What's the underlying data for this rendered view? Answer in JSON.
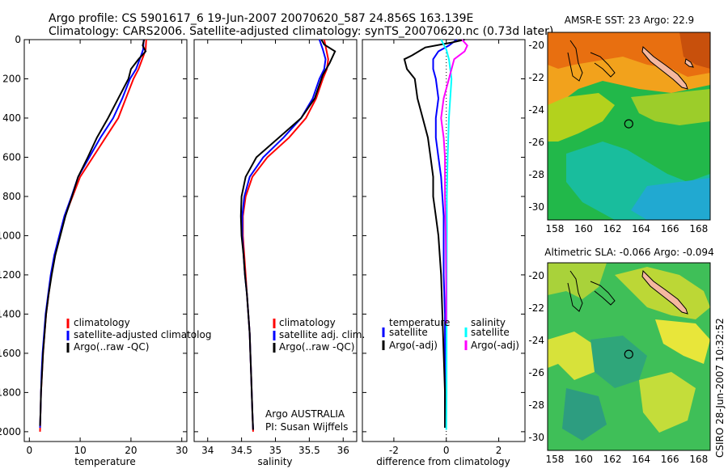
{
  "header": {
    "line1": "Argo profile: CS 5901617_6 19-Jun-2007 20070620_587 24.856S 163.139E",
    "line2": "Climatology: CARS2006. Satellite-adjusted climatology: synTS_20070620.nc (0.73d later)"
  },
  "side_note": "CSIRO 28-Jun-2007 10:32:52",
  "credits": {
    "line1": "Argo AUSTRALIA",
    "line2": "PI: Susan Wijffels"
  },
  "colors": {
    "climatology": "#ff0000",
    "satellite": "#0000ff",
    "argo": "#000000",
    "sat_diff": "#00ffff",
    "argo_adj_diff": "#ff00ff"
  },
  "chart_data": [
    {
      "type": "line",
      "xlabel": "temperature",
      "ylabel": "",
      "xlim": [
        -1,
        31
      ],
      "ylim": [
        2050,
        0
      ],
      "y_reversed": true,
      "xticks": [
        0,
        10,
        20,
        30
      ],
      "yticks": [
        0,
        200,
        400,
        600,
        800,
        1000,
        1200,
        1400,
        1600,
        1800,
        2000
      ],
      "legend": [
        "climatology",
        "satellite-adjusted climatolog",
        "Argo(..raw -QC)"
      ],
      "legend_placement": "lower-right",
      "series": [
        {
          "name": "climatology",
          "color": "#ff0000",
          "points": [
            [
              23.0,
              0
            ],
            [
              22.9,
              50
            ],
            [
              22.5,
              80
            ],
            [
              21.5,
              150
            ],
            [
              20.5,
              200
            ],
            [
              19.0,
              300
            ],
            [
              17.5,
              400
            ],
            [
              15.0,
              500
            ],
            [
              12.5,
              600
            ],
            [
              10.0,
              700
            ],
            [
              8.5,
              800
            ],
            [
              7.0,
              900
            ],
            [
              6.0,
              1000
            ],
            [
              5.0,
              1100
            ],
            [
              4.3,
              1200
            ],
            [
              3.8,
              1300
            ],
            [
              3.3,
              1400
            ],
            [
              3.0,
              1500
            ],
            [
              2.7,
              1600
            ],
            [
              2.5,
              1700
            ],
            [
              2.3,
              1800
            ],
            [
              2.2,
              1900
            ],
            [
              2.1,
              2000
            ]
          ]
        },
        {
          "name": "satellite-adjusted climatolog",
          "color": "#0000ff",
          "points": [
            [
              22.5,
              0
            ],
            [
              22.4,
              50
            ],
            [
              22.0,
              80
            ],
            [
              21.0,
              150
            ],
            [
              19.8,
              200
            ],
            [
              18.3,
              300
            ],
            [
              16.5,
              400
            ],
            [
              14.0,
              500
            ],
            [
              11.8,
              600
            ],
            [
              9.6,
              700
            ],
            [
              8.3,
              800
            ],
            [
              6.9,
              900
            ],
            [
              5.9,
              1000
            ],
            [
              4.9,
              1100
            ],
            [
              4.2,
              1200
            ],
            [
              3.7,
              1300
            ],
            [
              3.2,
              1400
            ],
            [
              2.9,
              1500
            ],
            [
              2.6,
              1600
            ],
            [
              2.4,
              1700
            ],
            [
              2.3,
              1800
            ],
            [
              2.2,
              1900
            ],
            [
              2.1,
              1980
            ]
          ]
        },
        {
          "name": "Argo(..raw -QC)",
          "color": "#000000",
          "points": [
            [
              22.6,
              0
            ],
            [
              22.3,
              30
            ],
            [
              22.9,
              60
            ],
            [
              21.5,
              100
            ],
            [
              20.0,
              150
            ],
            [
              19.5,
              200
            ],
            [
              17.5,
              300
            ],
            [
              15.5,
              400
            ],
            [
              13.3,
              500
            ],
            [
              11.5,
              600
            ],
            [
              9.6,
              700
            ],
            [
              8.4,
              800
            ],
            [
              7.1,
              900
            ],
            [
              6.1,
              1000
            ],
            [
              5.1,
              1100
            ],
            [
              4.4,
              1200
            ],
            [
              3.8,
              1300
            ],
            [
              3.3,
              1400
            ],
            [
              3.0,
              1500
            ],
            [
              2.7,
              1600
            ],
            [
              2.5,
              1700
            ],
            [
              2.3,
              1800
            ],
            [
              2.2,
              1900
            ],
            [
              2.1,
              1970
            ]
          ]
        }
      ]
    },
    {
      "type": "line",
      "xlabel": "salinity",
      "ylabel": "",
      "xlim": [
        33.8,
        36.2
      ],
      "ylim": [
        2050,
        0
      ],
      "y_reversed": true,
      "xticks": [
        34,
        34.5,
        35,
        35.5,
        36
      ],
      "legend": [
        "climatology",
        "satellite adj. clim.",
        "Argo(..raw -QC)"
      ],
      "legend_placement": "lower-right",
      "series": [
        {
          "name": "climatology",
          "color": "#ff0000",
          "points": [
            [
              35.72,
              0
            ],
            [
              35.75,
              50
            ],
            [
              35.78,
              100
            ],
            [
              35.76,
              150
            ],
            [
              35.7,
              200
            ],
            [
              35.6,
              300
            ],
            [
              35.45,
              400
            ],
            [
              35.2,
              500
            ],
            [
              34.88,
              600
            ],
            [
              34.66,
              700
            ],
            [
              34.56,
              800
            ],
            [
              34.52,
              900
            ],
            [
              34.52,
              1000
            ],
            [
              34.54,
              1100
            ],
            [
              34.56,
              1200
            ],
            [
              34.58,
              1300
            ],
            [
              34.6,
              1400
            ],
            [
              34.62,
              1500
            ],
            [
              34.63,
              1600
            ],
            [
              34.64,
              1700
            ],
            [
              34.65,
              1800
            ],
            [
              34.66,
              1900
            ],
            [
              34.67,
              2000
            ]
          ]
        },
        {
          "name": "satellite adj. clim.",
          "color": "#0000ff",
          "points": [
            [
              35.65,
              0
            ],
            [
              35.7,
              50
            ],
            [
              35.74,
              100
            ],
            [
              35.72,
              150
            ],
            [
              35.65,
              200
            ],
            [
              35.55,
              300
            ],
            [
              35.38,
              400
            ],
            [
              35.12,
              500
            ],
            [
              34.82,
              600
            ],
            [
              34.62,
              700
            ],
            [
              34.54,
              800
            ],
            [
              34.51,
              900
            ],
            [
              34.51,
              1000
            ],
            [
              34.53,
              1100
            ],
            [
              34.55,
              1200
            ],
            [
              34.58,
              1300
            ],
            [
              34.6,
              1400
            ],
            [
              34.62,
              1500
            ],
            [
              34.63,
              1600
            ],
            [
              34.64,
              1700
            ],
            [
              34.65,
              1800
            ],
            [
              34.66,
              1900
            ],
            [
              34.67,
              1990
            ]
          ]
        },
        {
          "name": "Argo(..raw -QC)",
          "color": "#000000",
          "points": [
            [
              35.68,
              0
            ],
            [
              35.72,
              25
            ],
            [
              35.88,
              60
            ],
            [
              35.8,
              120
            ],
            [
              35.7,
              180
            ],
            [
              35.68,
              200
            ],
            [
              35.58,
              300
            ],
            [
              35.38,
              400
            ],
            [
              35.05,
              500
            ],
            [
              34.72,
              600
            ],
            [
              34.56,
              700
            ],
            [
              34.5,
              800
            ],
            [
              34.49,
              900
            ],
            [
              34.5,
              1000
            ],
            [
              34.53,
              1100
            ],
            [
              34.55,
              1200
            ],
            [
              34.58,
              1300
            ],
            [
              34.6,
              1400
            ],
            [
              34.62,
              1500
            ],
            [
              34.63,
              1600
            ],
            [
              34.64,
              1700
            ],
            [
              34.65,
              1800
            ],
            [
              34.66,
              1900
            ],
            [
              34.67,
              1990
            ]
          ]
        }
      ]
    },
    {
      "type": "line",
      "xlabel": "difference from climatology",
      "ylabel": "",
      "xlim": [
        -3.2,
        3.0
      ],
      "ylim": [
        2050,
        0
      ],
      "y_reversed": true,
      "xticks": [
        -2,
        0,
        2
      ],
      "legend_groups": [
        {
          "title": "temperature",
          "items": [
            "satellite",
            "Argo(-adj)"
          ]
        },
        {
          "title": "salinity",
          "items": [
            "satellite",
            "Argo(-adj)"
          ]
        }
      ],
      "legend_placement": "lower-center",
      "zero_line": true,
      "series": [
        {
          "name": "temperature satellite",
          "color": "#0000ff",
          "points": [
            [
              0.4,
              0
            ],
            [
              0.1,
              30
            ],
            [
              -0.3,
              60
            ],
            [
              -0.5,
              100
            ],
            [
              -0.5,
              150
            ],
            [
              -0.4,
              200
            ],
            [
              -0.3,
              300
            ],
            [
              -0.4,
              400
            ],
            [
              -0.4,
              500
            ],
            [
              -0.3,
              600
            ],
            [
              -0.2,
              700
            ],
            [
              -0.15,
              800
            ],
            [
              -0.1,
              900
            ],
            [
              -0.1,
              1000
            ],
            [
              -0.1,
              1200
            ],
            [
              -0.05,
              1400
            ],
            [
              -0.05,
              1600
            ],
            [
              -0.05,
              1800
            ],
            [
              -0.05,
              1980
            ]
          ]
        },
        {
          "name": "temperature Argo(-adj)",
          "color": "#000000",
          "points": [
            [
              0.7,
              0
            ],
            [
              0.2,
              15
            ],
            [
              -0.8,
              40
            ],
            [
              -1.3,
              80
            ],
            [
              -1.6,
              100
            ],
            [
              -1.5,
              150
            ],
            [
              -1.2,
              200
            ],
            [
              -1.1,
              300
            ],
            [
              -0.9,
              400
            ],
            [
              -0.7,
              500
            ],
            [
              -0.6,
              600
            ],
            [
              -0.5,
              700
            ],
            [
              -0.5,
              800
            ],
            [
              -0.4,
              900
            ],
            [
              -0.3,
              1000
            ],
            [
              -0.2,
              1200
            ],
            [
              -0.15,
              1400
            ],
            [
              -0.1,
              1600
            ],
            [
              -0.05,
              1800
            ],
            [
              -0.05,
              1980
            ]
          ]
        },
        {
          "name": "salinity satellite",
          "color": "#00ffff",
          "points": [
            [
              -0.2,
              0
            ],
            [
              0.0,
              50
            ],
            [
              0.1,
              100
            ],
            [
              0.2,
              200
            ],
            [
              0.15,
              300
            ],
            [
              0.1,
              400
            ],
            [
              0.05,
              600
            ],
            [
              0.02,
              800
            ],
            [
              0.02,
              1000
            ],
            [
              0.01,
              1400
            ],
            [
              0.01,
              1800
            ],
            [
              0.0,
              1990
            ]
          ]
        },
        {
          "name": "salinity Argo(-adj)",
          "color": "#ff00ff",
          "points": [
            [
              0.6,
              0
            ],
            [
              0.8,
              30
            ],
            [
              0.7,
              60
            ],
            [
              0.3,
              100
            ],
            [
              0.1,
              200
            ],
            [
              -0.1,
              300
            ],
            [
              -0.2,
              400
            ],
            [
              -0.1,
              500
            ],
            [
              -0.05,
              600
            ],
            [
              -0.05,
              800
            ],
            [
              -0.02,
              1000
            ],
            [
              0.0,
              1300
            ],
            [
              0.0,
              1450
            ]
          ]
        }
      ]
    },
    {
      "type": "heatmap",
      "title": "AMSR-E SST: 23 Argo: 22.9",
      "xlim": [
        157.5,
        168.8
      ],
      "ylim": [
        -30.8,
        -19.2
      ],
      "xticks": [
        158,
        160,
        162,
        164,
        166,
        168
      ],
      "yticks": [
        -20,
        -22,
        -24,
        -26,
        -28,
        -30
      ],
      "argo_position": [
        163.139,
        -24.856
      ]
    },
    {
      "type": "heatmap",
      "title": "Altimetric SLA: -0.066 Argo: -0.094",
      "xlim": [
        157.5,
        168.8
      ],
      "ylim": [
        -30.8,
        -19.2
      ],
      "xticks": [
        158,
        160,
        162,
        164,
        166,
        168
      ],
      "yticks": [
        -20,
        -22,
        -24,
        -26,
        -28,
        -30
      ],
      "argo_position": [
        163.139,
        -24.856
      ]
    }
  ]
}
